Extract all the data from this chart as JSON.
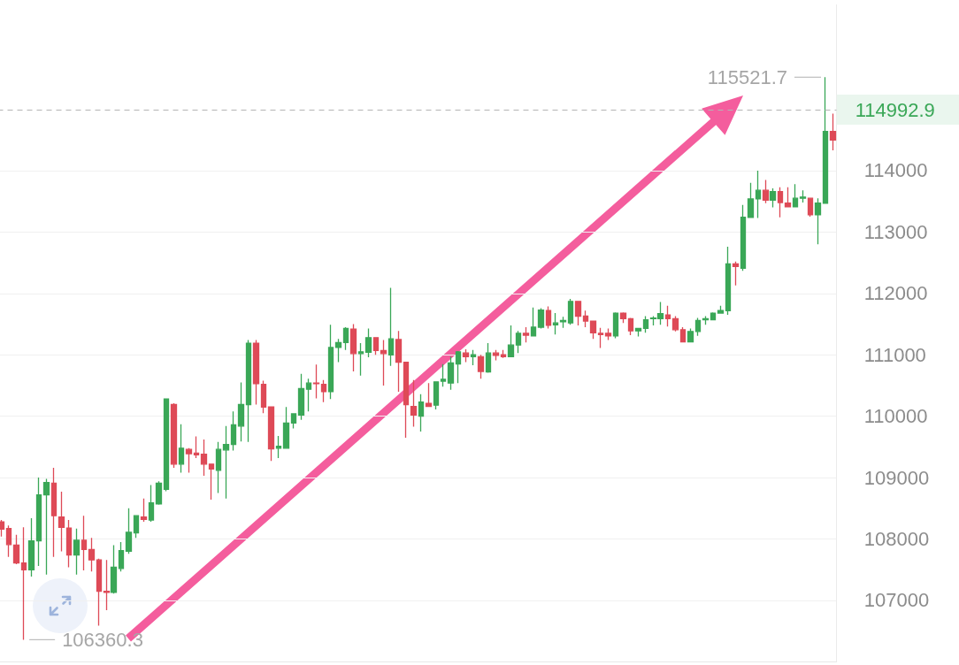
{
  "chart_data": {
    "type": "candlestick",
    "categories": [
      null,
      null,
      null,
      null,
      null,
      null,
      null,
      null,
      null,
      null,
      null,
      null,
      null,
      null,
      null,
      null,
      null,
      null,
      null,
      null,
      null,
      null,
      null,
      null,
      null,
      null,
      null,
      null,
      null,
      null,
      null,
      null,
      null,
      null,
      null,
      null,
      null,
      null,
      null,
      null,
      null,
      null,
      null,
      null,
      null,
      null,
      null,
      null,
      null,
      null,
      null,
      null,
      null,
      null,
      null,
      null,
      null,
      null,
      null,
      null,
      null,
      null,
      null,
      null,
      null,
      null,
      null,
      null,
      null,
      null,
      null,
      null,
      null,
      null,
      null,
      null,
      null,
      null,
      null,
      null,
      null,
      null,
      null,
      null,
      null,
      null,
      null,
      null,
      null,
      null,
      null,
      null,
      null,
      null,
      null,
      null,
      null,
      null,
      null,
      null,
      null,
      null,
      null,
      null,
      null,
      null,
      null,
      null,
      null,
      null,
      null,
      null
    ],
    "ohlc": [
      [
        108280,
        108310,
        108040,
        108160
      ],
      [
        108170,
        108220,
        107710,
        107910
      ],
      [
        107900,
        108070,
        107590,
        107610
      ],
      [
        107610,
        108190,
        106360.3,
        107500
      ],
      [
        107500,
        108340,
        107390,
        107970
      ],
      [
        107970,
        109000,
        107560,
        108720
      ],
      [
        108720,
        108980,
        107420,
        108920
      ],
      [
        108910,
        109160,
        107710,
        108380
      ],
      [
        108360,
        108770,
        107800,
        108190
      ],
      [
        108180,
        108310,
        107540,
        107740
      ],
      [
        107740,
        108170,
        107420,
        107980
      ],
      [
        107980,
        108380,
        107490,
        107830
      ],
      [
        107830,
        108020,
        107470,
        107660
      ],
      [
        107660,
        107680,
        106590,
        107150
      ],
      [
        107150,
        107660,
        106840,
        107130
      ],
      [
        107130,
        107900,
        107110,
        107540
      ],
      [
        107520,
        107950,
        107470,
        107810
      ],
      [
        107800,
        108500,
        107760,
        108110
      ],
      [
        108100,
        108380,
        108020,
        108380
      ],
      [
        108360,
        108660,
        108280,
        108320
      ],
      [
        108310,
        108880,
        108280,
        108590
      ],
      [
        108570,
        108940,
        108560,
        108910
      ],
      [
        108810,
        110290,
        108780,
        110280
      ],
      [
        110190,
        110210,
        109160,
        109220
      ],
      [
        109220,
        109870,
        109080,
        109480
      ],
      [
        109460,
        109480,
        109080,
        109390
      ],
      [
        109400,
        109670,
        109320,
        109370
      ],
      [
        109380,
        109620,
        109030,
        109220
      ],
      [
        109220,
        109220,
        108640,
        109140
      ],
      [
        109120,
        109580,
        108750,
        109460
      ],
      [
        109450,
        109840,
        108660,
        109540
      ],
      [
        109540,
        110080,
        109440,
        109860
      ],
      [
        109840,
        110550,
        109590,
        110190
      ],
      [
        110190,
        111240,
        109580,
        111190
      ],
      [
        111190,
        111240,
        110190,
        110530
      ],
      [
        110520,
        110580,
        110050,
        110150
      ],
      [
        110150,
        110150,
        109270,
        109470
      ],
      [
        109480,
        109680,
        109320,
        109510
      ],
      [
        109480,
        110150,
        109470,
        109890
      ],
      [
        109890,
        110040,
        109800,
        110040
      ],
      [
        110020,
        110690,
        109940,
        110450
      ],
      [
        110440,
        110610,
        110080,
        110540
      ],
      [
        110540,
        110840,
        110290,
        110530
      ],
      [
        110520,
        110590,
        110230,
        110400
      ],
      [
        110400,
        111490,
        110280,
        111120
      ],
      [
        111120,
        111260,
        110880,
        111200
      ],
      [
        111200,
        111450,
        111080,
        111430
      ],
      [
        111420,
        111500,
        110730,
        111020
      ],
      [
        111020,
        111190,
        110660,
        111050
      ],
      [
        111040,
        111430,
        110960,
        111280
      ],
      [
        111280,
        111280,
        111000,
        111070
      ],
      [
        111070,
        111240,
        110500,
        111020
      ],
      [
        111000,
        112090,
        110820,
        111260
      ],
      [
        111250,
        111390,
        110400,
        110880
      ],
      [
        110880,
        110880,
        109650,
        110190
      ],
      [
        110160,
        110590,
        109830,
        110020
      ],
      [
        110000,
        110360,
        109750,
        110230
      ],
      [
        110210,
        110540,
        110150,
        110160
      ],
      [
        110180,
        110560,
        110110,
        110560
      ],
      [
        110570,
        110850,
        110480,
        110600
      ],
      [
        110540,
        110970,
        110430,
        110870
      ],
      [
        110850,
        111060,
        110540,
        111050
      ],
      [
        111030,
        111090,
        110880,
        110970
      ],
      [
        110970,
        111080,
        110830,
        111000
      ],
      [
        110970,
        111000,
        110610,
        110730
      ],
      [
        110720,
        111190,
        110710,
        111030
      ],
      [
        111030,
        111080,
        110910,
        110990
      ],
      [
        111000,
        111080,
        110950,
        110970
      ],
      [
        110970,
        111480,
        110960,
        111160
      ],
      [
        111160,
        111390,
        111030,
        111350
      ],
      [
        111350,
        111450,
        111200,
        111320
      ],
      [
        111310,
        111770,
        111300,
        111450
      ],
      [
        111450,
        111760,
        111430,
        111730
      ],
      [
        111720,
        111790,
        111430,
        111480
      ],
      [
        111490,
        111680,
        111330,
        111520
      ],
      [
        111540,
        111620,
        111440,
        111560
      ],
      [
        111520,
        111910,
        111490,
        111870
      ],
      [
        111870,
        111880,
        111480,
        111630
      ],
      [
        111630,
        111720,
        111450,
        111550
      ],
      [
        111550,
        111550,
        111260,
        111360
      ],
      [
        111350,
        111440,
        111110,
        111330
      ],
      [
        111350,
        111430,
        111240,
        111310
      ],
      [
        111310,
        111690,
        111270,
        111680
      ],
      [
        111680,
        111690,
        111520,
        111590
      ],
      [
        111590,
        111600,
        111320,
        111390
      ],
      [
        111390,
        111430,
        111300,
        111430
      ],
      [
        111430,
        111630,
        111360,
        111570
      ],
      [
        111590,
        111630,
        111480,
        111600
      ],
      [
        111590,
        111860,
        111490,
        111670
      ],
      [
        111650,
        111800,
        111460,
        111590
      ],
      [
        111590,
        111630,
        111380,
        111410
      ],
      [
        111410,
        111450,
        111200,
        111210
      ],
      [
        111210,
        111430,
        111200,
        111380
      ],
      [
        111380,
        111600,
        111310,
        111560
      ],
      [
        111570,
        111630,
        111490,
        111590
      ],
      [
        111570,
        111690,
        111560,
        111680
      ],
      [
        111680,
        111800,
        111670,
        111720
      ],
      [
        111720,
        112760,
        111650,
        112480
      ],
      [
        112480,
        112520,
        112130,
        112440
      ],
      [
        112410,
        113440,
        112370,
        113240
      ],
      [
        113240,
        113800,
        113230,
        113540
      ],
      [
        113540,
        114000,
        113230,
        113680
      ],
      [
        113680,
        113850,
        113470,
        113520
      ],
      [
        113520,
        113710,
        113400,
        113660
      ],
      [
        113660,
        113730,
        113240,
        113480
      ],
      [
        113470,
        113730,
        113400,
        113410
      ],
      [
        113410,
        113780,
        113400,
        113550
      ],
      [
        113550,
        113680,
        113480,
        113570
      ],
      [
        113550,
        113550,
        113250,
        113280
      ],
      [
        113280,
        113550,
        112800,
        113470
      ],
      [
        113470,
        115521.7,
        113460,
        114640
      ],
      [
        114640,
        114930,
        114330,
        114500
      ]
    ],
    "colors": [
      "#de4a57",
      "#de4a57",
      "#de4a57",
      "#de4a57",
      "#3aa757",
      "#3aa757",
      "#3aa757",
      "#de4a57",
      "#de4a57",
      "#de4a57",
      "#3aa757",
      "#de4a57",
      "#de4a57",
      "#de4a57",
      "#de4a57",
      "#3aa757",
      "#3aa757",
      "#3aa757",
      "#3aa757",
      "#de4a57",
      "#3aa757",
      "#3aa757",
      "#3aa757",
      "#de4a57",
      "#3aa757",
      "#de4a57",
      "#de4a57",
      "#de4a57",
      "#de4a57",
      "#3aa757",
      "#3aa757",
      "#3aa757",
      "#3aa757",
      "#3aa757",
      "#de4a57",
      "#de4a57",
      "#de4a57",
      "#3aa757",
      "#3aa757",
      "#3aa757",
      "#3aa757",
      "#3aa757",
      "#de4a57",
      "#de4a57",
      "#3aa757",
      "#3aa757",
      "#3aa757",
      "#de4a57",
      "#3aa757",
      "#3aa757",
      "#de4a57",
      "#de4a57",
      "#3aa757",
      "#de4a57",
      "#de4a57",
      "#de4a57",
      "#3aa757",
      "#de4a57",
      "#3aa757",
      "#3aa757",
      "#3aa757",
      "#3aa757",
      "#de4a57",
      "#3aa757",
      "#de4a57",
      "#3aa757",
      "#de4a57",
      "#de4a57",
      "#3aa757",
      "#3aa757",
      "#de4a57",
      "#3aa757",
      "#3aa757",
      "#de4a57",
      "#3aa757",
      "#3aa757",
      "#3aa757",
      "#de4a57",
      "#de4a57",
      "#de4a57",
      "#de4a57",
      "#de4a57",
      "#3aa757",
      "#de4a57",
      "#de4a57",
      "#3aa757",
      "#3aa757",
      "#3aa757",
      "#3aa757",
      "#de4a57",
      "#de4a57",
      "#de4a57",
      "#3aa757",
      "#3aa757",
      "#3aa757",
      "#3aa757",
      "#3aa757",
      "#3aa757",
      "#de4a57",
      "#3aa757",
      "#3aa757",
      "#3aa757",
      "#de4a57",
      "#3aa757",
      "#de4a57",
      "#de4a57",
      "#3aa757",
      "#3aa757",
      "#de4a57",
      "#3aa757",
      "#3aa757",
      "#de4a57"
    ],
    "ylim": [
      106000,
      116700
    ],
    "yticks": [
      107000,
      108000,
      109000,
      110000,
      111000,
      112000,
      113000,
      114000
    ],
    "grid": "y",
    "tick_labels": "y",
    "ref_lines": [
      {
        "axis": "y",
        "value": 114992.9,
        "label": "114992.9",
        "color": "#b4b4b4",
        "line_style": "dashed"
      }
    ],
    "annotations": [
      "115521.7",
      "106360.3"
    ]
  }
}
